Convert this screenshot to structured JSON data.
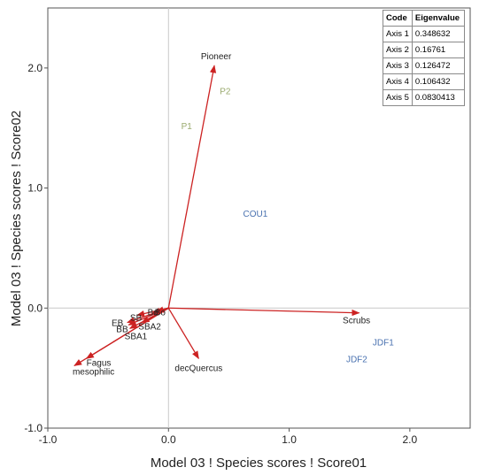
{
  "chart_data": {
    "type": "biplot",
    "xlabel": "Model 03 ! Species scores ! Score01",
    "ylabel": "Model 03 ! Species scores ! Score02",
    "xlim": [
      -1.0,
      2.5
    ],
    "ylim": [
      -1.0,
      2.5
    ],
    "xticks": [
      {
        "v": -1.0,
        "label": "-1.0"
      },
      {
        "v": 0.0,
        "label": "0.0"
      },
      {
        "v": 1.0,
        "label": "1.0"
      },
      {
        "v": 2.0,
        "label": "2.0"
      }
    ],
    "yticks": [
      {
        "v": -1.0,
        "label": "-1.0"
      },
      {
        "v": 0.0,
        "label": "0.0"
      },
      {
        "v": 1.0,
        "label": "1.0"
      },
      {
        "v": 2.0,
        "label": "2.0"
      }
    ],
    "arrow_color": "#cc2222",
    "arrows": [
      {
        "label": "Pioneer",
        "x": 0.38,
        "y": 2.02
      },
      {
        "label": "Scrubs",
        "x": 1.58,
        "y": -0.04
      },
      {
        "label": "decQuercus",
        "x": 0.25,
        "y": -0.42
      },
      {
        "label": "Fagus",
        "x": -0.68,
        "y": -0.42
      },
      {
        "label": "mesophilic",
        "x": -0.78,
        "y": -0.48
      },
      {
        "label": "SBA1",
        "x": -0.32,
        "y": -0.17
      },
      {
        "label": "SBA2",
        "x": -0.22,
        "y": -0.12
      },
      {
        "label": "SB",
        "x": -0.26,
        "y": -0.06
      },
      {
        "label": "Bd",
        "x": -0.13,
        "y": -0.04
      },
      {
        "label": "Bo",
        "x": -0.1,
        "y": -0.03
      },
      {
        "label": "EB",
        "x": -0.34,
        "y": -0.12
      },
      {
        "label": "BB",
        "x": -0.33,
        "y": -0.14
      }
    ],
    "point_labels": [
      {
        "label": "P2",
        "x": 0.47,
        "y": 1.81,
        "color": "#9aaa6e"
      },
      {
        "label": "P1",
        "x": 0.15,
        "y": 1.52,
        "color": "#9aaa6e"
      },
      {
        "label": "COU1",
        "x": 0.72,
        "y": 0.79,
        "color": "#4a72b0"
      },
      {
        "label": "JDF1",
        "x": 1.78,
        "y": -0.28,
        "color": "#4a72b0"
      },
      {
        "label": "JDF2",
        "x": 1.56,
        "y": -0.42,
        "color": "#4a72b0"
      }
    ],
    "grid": false,
    "zero_lines": true
  },
  "eigen_table": {
    "headers": [
      "Code",
      "Eigenvalue"
    ],
    "rows": [
      {
        "code": "Axis 1",
        "value": "0.348632"
      },
      {
        "code": "Axis 2",
        "value": "0.16761"
      },
      {
        "code": "Axis 3",
        "value": "0.126472"
      },
      {
        "code": "Axis 4",
        "value": "0.106432"
      },
      {
        "code": "Axis 5",
        "value": "0.0830413"
      }
    ]
  }
}
